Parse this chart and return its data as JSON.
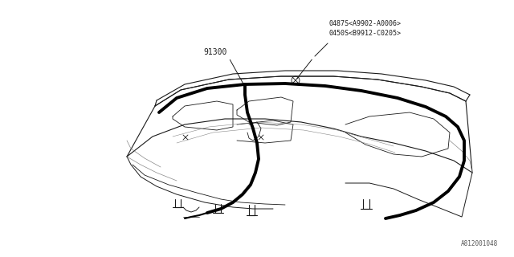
{
  "background_color": "#ffffff",
  "fig_width": 6.4,
  "fig_height": 3.2,
  "dpi": 100,
  "label_91300": "91300",
  "label_part1": "0487S<A9902-A0006>",
  "label_part2": "0450S<B9912-C0205>",
  "watermark": "A812001048",
  "line_color": "#1a1a1a",
  "thick_color": "#000000",
  "thin_color": "#555555"
}
